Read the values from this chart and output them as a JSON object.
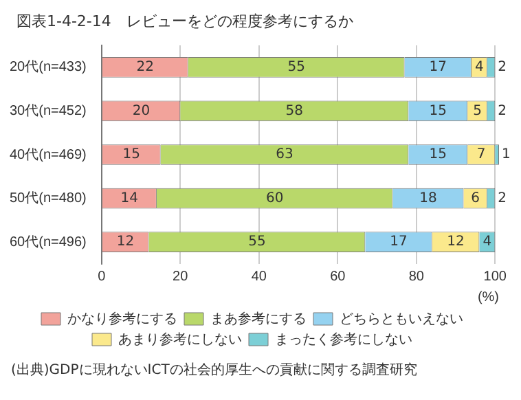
{
  "chart_data": {
    "type": "bar",
    "orientation": "horizontal",
    "stacked": true,
    "title": "図表1-4-2-14　レビューをどの程度参考にするか",
    "categories": [
      "20代(n=433)",
      "30代(n=452)",
      "40代(n=469)",
      "50代(n=480)",
      "60代(n=496)"
    ],
    "series": [
      {
        "name": "かなり参考にする",
        "color": "#f2a39b",
        "values": [
          22,
          20,
          15,
          14,
          12
        ]
      },
      {
        "name": "まあ参考にする",
        "color": "#b9d86a",
        "values": [
          55,
          58,
          63,
          60,
          55
        ]
      },
      {
        "name": "どちらともいえない",
        "color": "#95d2f0",
        "values": [
          17,
          15,
          15,
          18,
          17
        ]
      },
      {
        "name": "あまり参考にしない",
        "color": "#fbe98c",
        "values": [
          4,
          5,
          7,
          6,
          12
        ]
      },
      {
        "name": "まったく参考にしない",
        "color": "#7ccfd6",
        "values": [
          2,
          2,
          1,
          2,
          4
        ]
      }
    ],
    "xlim": [
      0,
      101
    ],
    "xticks": [
      0,
      20,
      40,
      60,
      80,
      100
    ],
    "xlabel": "(%)",
    "grid": "x",
    "legend": "bottom",
    "data_labels": true,
    "annotations": [
      "(出典)GDPに現れないICTの社会的厚生への貢献に関する調査研究"
    ]
  }
}
